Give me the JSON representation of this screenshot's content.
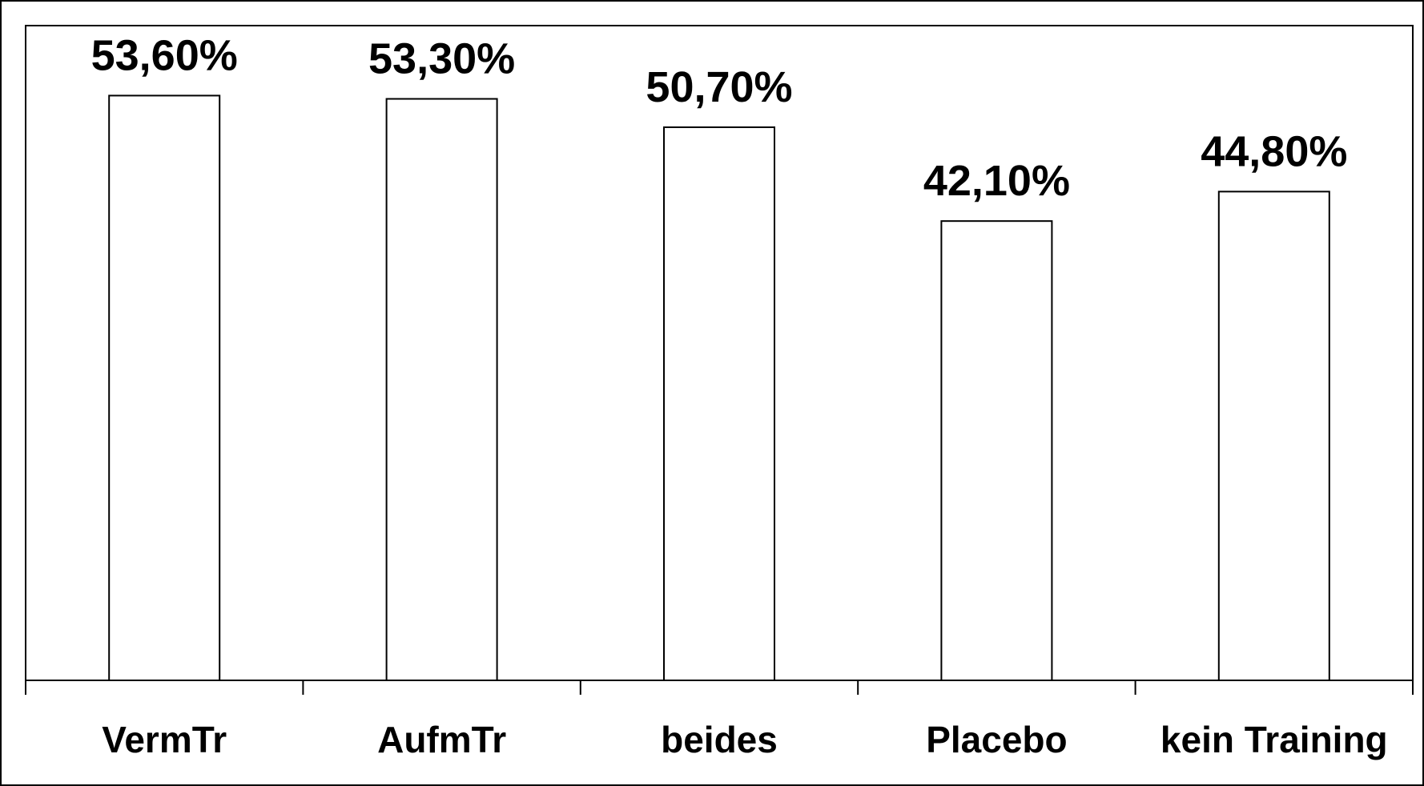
{
  "chart_data": {
    "type": "bar",
    "categories": [
      "VermTr",
      "AufmTr",
      "beides",
      "Placebo",
      "kein Training"
    ],
    "values": [
      53.6,
      53.3,
      50.7,
      42.1,
      44.8
    ],
    "data_labels": [
      "53,60%",
      "53,30%",
      "50,70%",
      "42,10%",
      "44,80%"
    ],
    "title": "",
    "xlabel": "",
    "ylabel": "",
    "ylim": [
      0,
      60
    ],
    "grid": false,
    "legend": "none",
    "colors": {
      "bar_fill": "#ffffff",
      "bar_stroke": "#000000",
      "axis": "#000000",
      "background": "#ffffff"
    }
  }
}
